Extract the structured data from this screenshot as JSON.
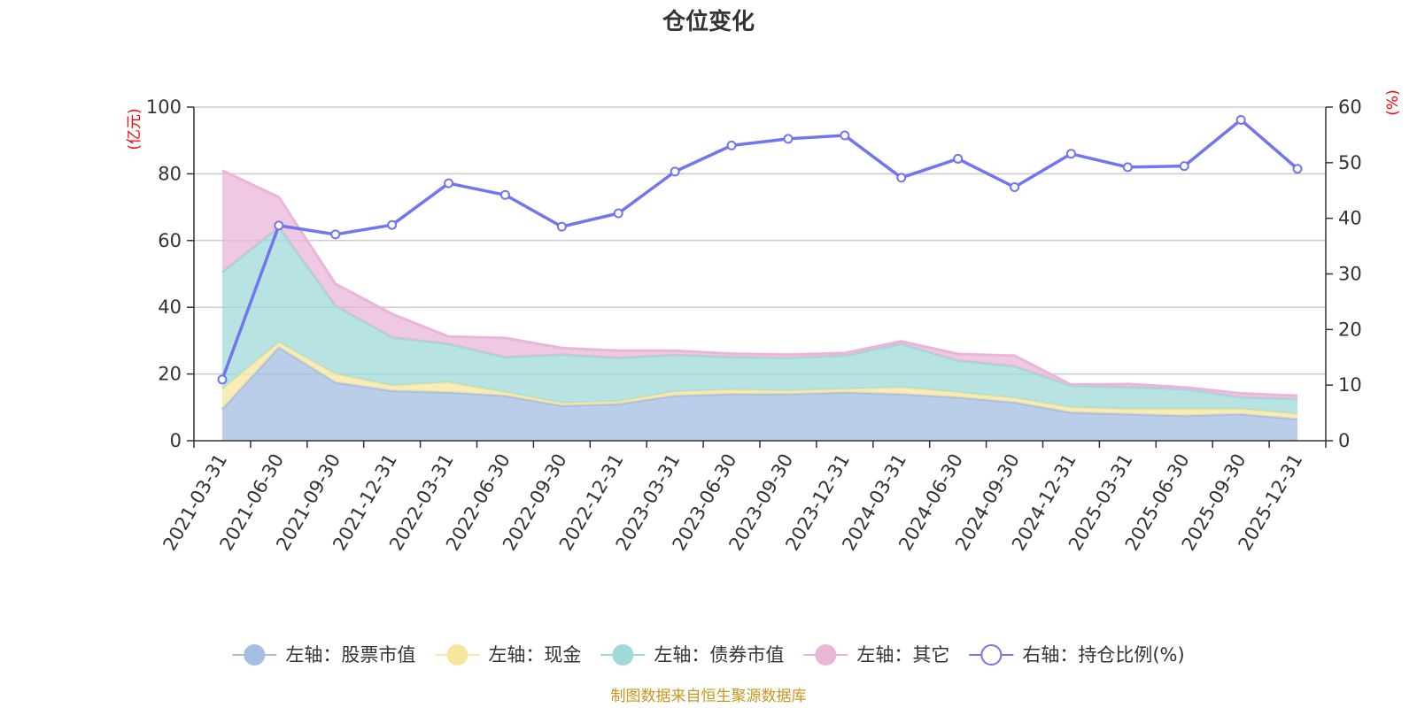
{
  "chart_data": {
    "type": "area",
    "title": "仓位变化",
    "source": "制图数据来自恒生聚源数据库",
    "left_axis": {
      "unit": "(亿元)",
      "min": 0,
      "max": 100,
      "ticks": [
        0,
        20,
        40,
        60,
        80,
        100
      ]
    },
    "right_axis": {
      "unit": "(%)",
      "min": 0,
      "max": 60,
      "ticks": [
        0,
        10,
        20,
        30,
        40,
        50,
        60
      ]
    },
    "categories": [
      "2021-03-31",
      "2021-06-30",
      "2021-09-30",
      "2021-12-31",
      "2022-03-31",
      "2022-06-30",
      "2022-09-30",
      "2022-12-31",
      "2023-03-31",
      "2023-06-30",
      "2023-09-30",
      "2023-12-31",
      "2024-03-31",
      "2024-06-30",
      "2024-09-30",
      "2024-12-31",
      "2025-03-31",
      "2025-06-30",
      "2025-09-30",
      "2025-12-31"
    ],
    "stacked_series": [
      {
        "name": "左轴：股票市值",
        "color": "#a3bde3",
        "values": [
          9.5,
          28.0,
          17.5,
          15.0,
          14.5,
          13.5,
          10.5,
          11.0,
          13.5,
          14.0,
          14.0,
          14.5,
          14.0,
          13.0,
          11.5,
          8.5,
          8.0,
          7.5,
          8.0,
          6.5
        ]
      },
      {
        "name": "左轴：现金",
        "color": "#f7e6a0",
        "values": [
          6.0,
          1.5,
          2.5,
          1.5,
          3.0,
          1.0,
          0.8,
          0.8,
          1.2,
          1.3,
          1.0,
          1.0,
          2.0,
          1.5,
          1.3,
          1.5,
          1.5,
          2.0,
          1.5,
          1.5
        ]
      },
      {
        "name": "左轴：债券市值",
        "color": "#9fdad8",
        "values": [
          35.0,
          34.5,
          20.5,
          14.5,
          11.5,
          10.5,
          14.5,
          13.0,
          11.0,
          9.8,
          9.8,
          10.0,
          13.0,
          9.5,
          9.5,
          6.5,
          6.5,
          6.0,
          3.5,
          4.5
        ]
      },
      {
        "name": "左轴：其它",
        "color": "#e9b6d9",
        "values": [
          30.5,
          9.0,
          6.5,
          7.0,
          2.2,
          5.8,
          2.0,
          2.2,
          1.3,
          1.0,
          1.0,
          0.8,
          0.8,
          2.0,
          3.2,
          0.3,
          1.0,
          0.5,
          1.2,
          1.0
        ]
      }
    ],
    "line_series": {
      "name": "右轴：持仓比例(%)",
      "color": "#7375ee",
      "values": [
        11.0,
        38.7,
        37.1,
        38.8,
        46.3,
        44.2,
        38.5,
        40.9,
        48.4,
        53.1,
        54.3,
        54.9,
        47.3,
        50.7,
        45.6,
        51.6,
        49.2,
        49.4,
        57.7,
        48.9
      ]
    },
    "grid": true,
    "legend_position": "bottom"
  }
}
